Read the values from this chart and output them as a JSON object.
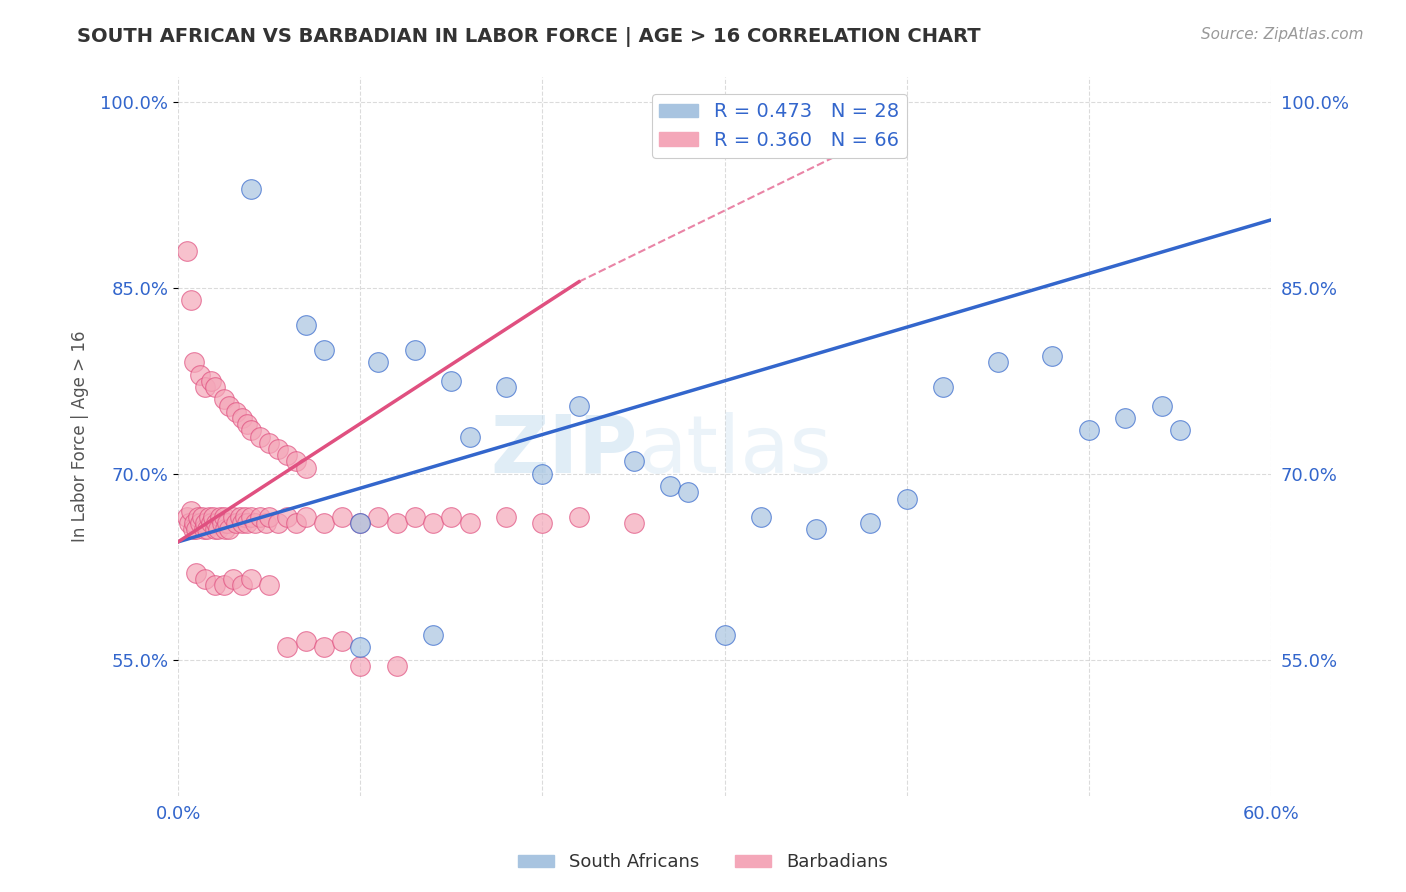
{
  "title": "SOUTH AFRICAN VS BARBADIAN IN LABOR FORCE | AGE > 16 CORRELATION CHART",
  "source_text": "Source: ZipAtlas.com",
  "ylabel": "In Labor Force | Age > 16",
  "xlim": [
    0.0,
    0.6
  ],
  "ylim": [
    0.44,
    1.02
  ],
  "xticks": [
    0.0,
    0.1,
    0.2,
    0.3,
    0.4,
    0.5,
    0.6
  ],
  "xticklabels": [
    "0.0%",
    "",
    "",
    "",
    "",
    "",
    "60.0%"
  ],
  "yticks": [
    0.55,
    0.7,
    0.85,
    1.0
  ],
  "yticklabels": [
    "55.0%",
    "70.0%",
    "85.0%",
    "100.0%"
  ],
  "blue_color": "#a8c4e0",
  "pink_color": "#f4a7b9",
  "blue_line_color": "#3366cc",
  "pink_line_color": "#e05080",
  "watermark_zip": "ZIP",
  "watermark_atlas": "atlas",
  "legend_r_blue": "R = 0.473",
  "legend_n_blue": "N = 28",
  "legend_r_pink": "R = 0.360",
  "legend_n_pink": "N = 66",
  "south_africans_label": "South Africans",
  "barbadians_label": "Barbadians",
  "blue_scatter_x": [
    0.04,
    0.07,
    0.08,
    0.1,
    0.11,
    0.13,
    0.15,
    0.16,
    0.18,
    0.2,
    0.22,
    0.25,
    0.27,
    0.28,
    0.32,
    0.35,
    0.38,
    0.4,
    0.42,
    0.45,
    0.48,
    0.5,
    0.52,
    0.54,
    0.1,
    0.14,
    0.3,
    0.55
  ],
  "blue_scatter_y": [
    0.93,
    0.82,
    0.8,
    0.66,
    0.79,
    0.8,
    0.775,
    0.73,
    0.77,
    0.7,
    0.755,
    0.71,
    0.69,
    0.685,
    0.665,
    0.655,
    0.66,
    0.68,
    0.77,
    0.79,
    0.795,
    0.735,
    0.745,
    0.755,
    0.56,
    0.57,
    0.57,
    0.735
  ],
  "pink_scatter_x": [
    0.005,
    0.006,
    0.007,
    0.008,
    0.009,
    0.01,
    0.011,
    0.012,
    0.013,
    0.014,
    0.015,
    0.016,
    0.017,
    0.018,
    0.019,
    0.02,
    0.021,
    0.022,
    0.023,
    0.024,
    0.025,
    0.026,
    0.027,
    0.028,
    0.03,
    0.032,
    0.034,
    0.035,
    0.037,
    0.038,
    0.04,
    0.042,
    0.045,
    0.048,
    0.05,
    0.055,
    0.06,
    0.065,
    0.07,
    0.08,
    0.09,
    0.1,
    0.11,
    0.12,
    0.13,
    0.14,
    0.15,
    0.16,
    0.18,
    0.2,
    0.22,
    0.25,
    0.01,
    0.015,
    0.02,
    0.025,
    0.03,
    0.035,
    0.04,
    0.05,
    0.06,
    0.07,
    0.08,
    0.09,
    0.1,
    0.12
  ],
  "pink_scatter_y": [
    0.665,
    0.66,
    0.67,
    0.655,
    0.66,
    0.655,
    0.665,
    0.66,
    0.665,
    0.655,
    0.66,
    0.655,
    0.665,
    0.66,
    0.665,
    0.655,
    0.66,
    0.655,
    0.665,
    0.66,
    0.665,
    0.655,
    0.66,
    0.655,
    0.665,
    0.66,
    0.665,
    0.66,
    0.665,
    0.66,
    0.665,
    0.66,
    0.665,
    0.66,
    0.665,
    0.66,
    0.665,
    0.66,
    0.665,
    0.66,
    0.665,
    0.66,
    0.665,
    0.66,
    0.665,
    0.66,
    0.665,
    0.66,
    0.665,
    0.66,
    0.665,
    0.66,
    0.62,
    0.615,
    0.61,
    0.61,
    0.615,
    0.61,
    0.615,
    0.61,
    0.56,
    0.565,
    0.56,
    0.565,
    0.545,
    0.545
  ],
  "pink_extra_x": [
    0.005,
    0.007,
    0.009,
    0.012,
    0.015,
    0.018,
    0.02,
    0.025,
    0.028,
    0.032,
    0.035,
    0.038,
    0.04,
    0.045,
    0.05,
    0.055,
    0.06,
    0.065,
    0.07
  ],
  "pink_extra_y": [
    0.88,
    0.84,
    0.79,
    0.78,
    0.77,
    0.775,
    0.77,
    0.76,
    0.755,
    0.75,
    0.745,
    0.74,
    0.735,
    0.73,
    0.725,
    0.72,
    0.715,
    0.71,
    0.705
  ],
  "blue_line_x0": 0.0,
  "blue_line_y0": 0.645,
  "blue_line_x1": 0.6,
  "blue_line_y1": 0.905,
  "pink_line_solid_x0": 0.0,
  "pink_line_solid_y0": 0.645,
  "pink_line_solid_x1": 0.22,
  "pink_line_solid_y1": 0.855,
  "pink_line_dash_x0": 0.22,
  "pink_line_dash_y0": 0.855,
  "pink_line_dash_x1": 0.38,
  "pink_line_dash_y1": 0.97,
  "grid_color": "#cccccc",
  "background_color": "#ffffff",
  "title_color": "#333333",
  "axis_label_color": "#555555",
  "tick_label_color": "#3366cc"
}
